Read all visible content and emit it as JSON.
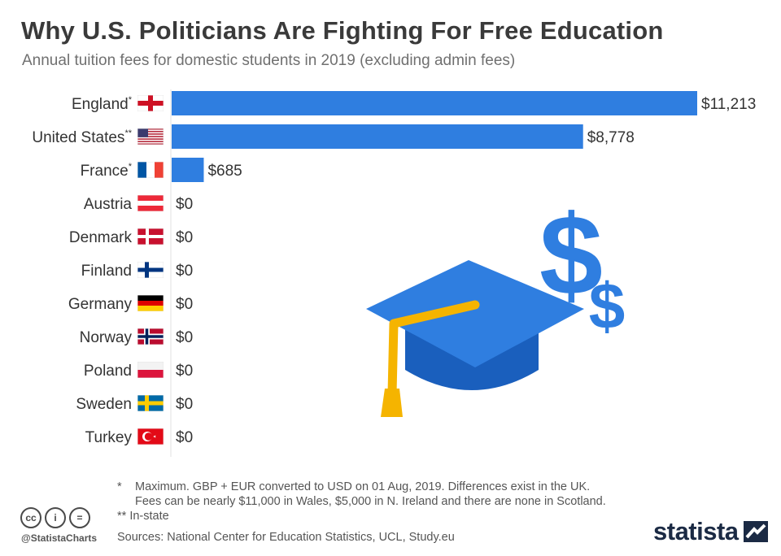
{
  "header": {
    "title": "Why U.S. Politicians Are Fighting For Free Education",
    "subtitle": "Annual tuition fees for domestic students in 2019 (excluding admin fees)"
  },
  "chart_data": {
    "type": "bar",
    "orientation": "horizontal",
    "categories": [
      "England*",
      "United States**",
      "France*",
      "Austria",
      "Denmark",
      "Finland",
      "Germany",
      "Norway",
      "Poland",
      "Sweden",
      "Turkey"
    ],
    "values": [
      11213,
      8778,
      685,
      0,
      0,
      0,
      0,
      0,
      0,
      0,
      0
    ],
    "value_labels": [
      "$11,213",
      "$8,778",
      "$685",
      "$0",
      "$0",
      "$0",
      "$0",
      "$0",
      "$0",
      "$0",
      "$0"
    ],
    "flags": [
      "england-flag",
      "usa-flag",
      "france-flag",
      "austria-flag",
      "denmark-flag",
      "finland-flag",
      "germany-flag",
      "norway-flag",
      "poland-flag",
      "sweden-flag",
      "turkey-flag"
    ],
    "bar_color": "#2f7ee0",
    "xlim": [
      0,
      11213
    ],
    "grid": false,
    "title": "Why U.S. Politicians Are Fighting For Free Education",
    "xlabel": "",
    "ylabel": ""
  },
  "illustration": {
    "icon": "graduation-cap-with-dollar-signs-icon",
    "dollar_symbol": "$",
    "colors": {
      "cap": "#2f7ee0",
      "cap_dark": "#1a5fbd",
      "tassel": "#f5b400"
    }
  },
  "footer": {
    "note_1_symbol": "*",
    "note_1_line1": "Maximum. GBP + EUR converted to USD on 01 Aug, 2019. Differences exist in the UK.",
    "note_1_line2": "Fees can be nearly $11,000 in Wales, $5,000 in N. Ireland and there are none in Scotland.",
    "note_2": "** In-state",
    "sources": "Sources: National Center for Education Statistics, UCL, Study.eu",
    "license_cc": "cc",
    "license_by": "i",
    "license_nd": "=",
    "handle": "@StatistaCharts",
    "brand": "statista"
  }
}
